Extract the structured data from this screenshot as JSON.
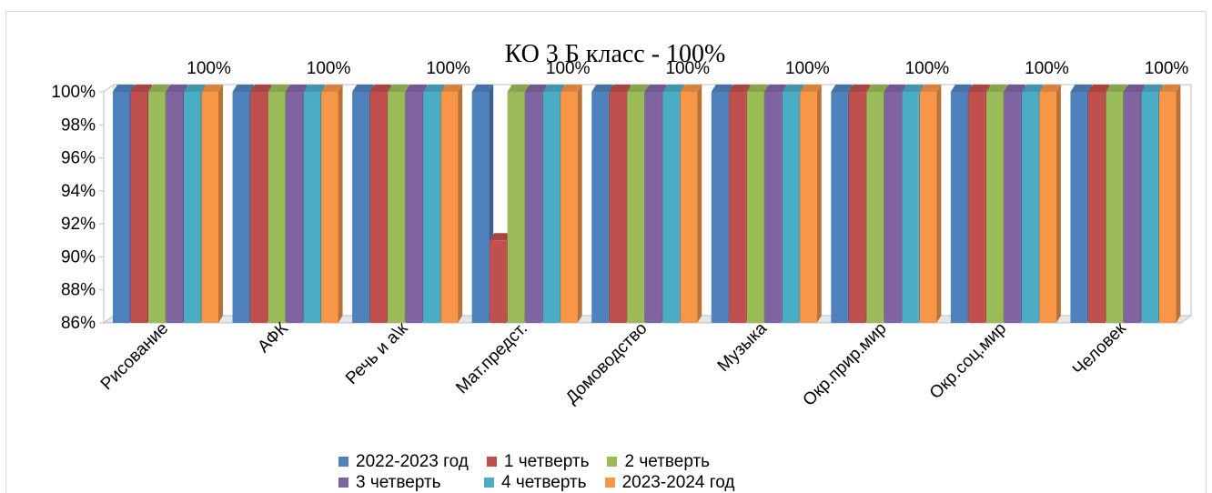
{
  "chart_data": {
    "type": "bar",
    "title": "КО 3 Б класс - 100%",
    "categories": [
      "Рисование",
      "АФК",
      "Речь и а\\к",
      "Мат.предст.",
      "Домоводство",
      "Музыка",
      "Окр.прир.мир",
      "Окр.соц.мир",
      "Человек"
    ],
    "series": [
      {
        "name": "2022-2023 год",
        "color": "#4f81bd",
        "values": [
          100,
          100,
          100,
          100,
          100,
          100,
          100,
          100,
          100
        ]
      },
      {
        "name": "1 четверть",
        "color": "#c0504d",
        "values": [
          100,
          100,
          100,
          91,
          100,
          100,
          100,
          100,
          100
        ]
      },
      {
        "name": "2 четверть",
        "color": "#9bbb59",
        "values": [
          100,
          100,
          100,
          100,
          100,
          100,
          100,
          100,
          100
        ]
      },
      {
        "name": "3 четверть",
        "color": "#8064a2",
        "values": [
          100,
          100,
          100,
          100,
          100,
          100,
          100,
          100,
          100
        ]
      },
      {
        "name": "4 четверть",
        "color": "#4bacc6",
        "values": [
          100,
          100,
          100,
          100,
          100,
          100,
          100,
          100,
          100
        ]
      },
      {
        "name": "2023-2024 год",
        "color": "#f79646",
        "values": [
          100,
          100,
          100,
          100,
          100,
          100,
          100,
          100,
          100
        ]
      }
    ],
    "data_labels": [
      "100%",
      "100%",
      "100%",
      "100%",
      "100%",
      "100%",
      "100%",
      "100%",
      "100%"
    ],
    "y_ticks": [
      "86%",
      "88%",
      "90%",
      "92%",
      "94%",
      "96%",
      "98%",
      "100%"
    ],
    "ylim": [
      86,
      100
    ],
    "grid": false,
    "legend_position": "bottom",
    "style": "3d-clustered-column"
  }
}
